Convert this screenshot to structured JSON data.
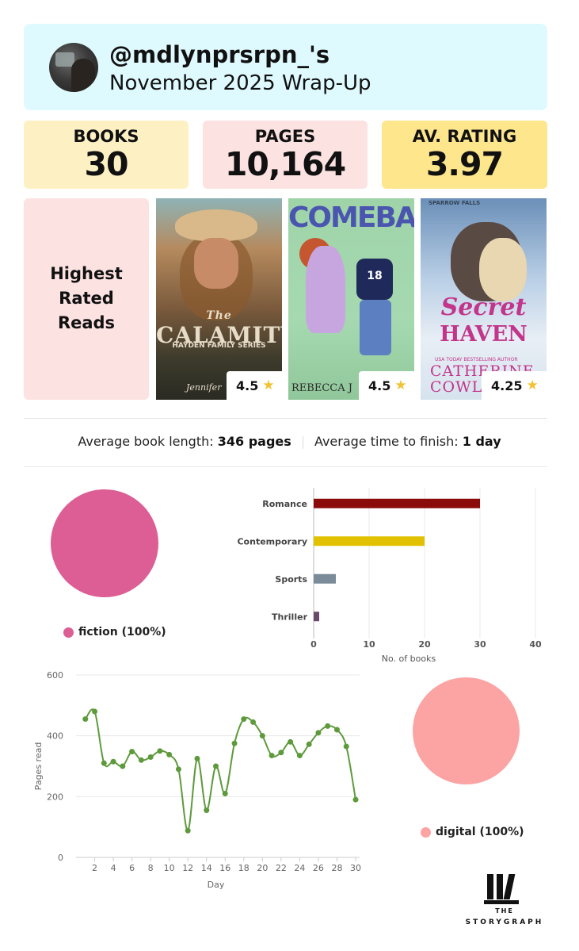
{
  "header": {
    "username": "@mdlynprsrpn_'s",
    "subtitle": "November 2025 Wrap-Up"
  },
  "stats": {
    "books_label": "BOOKS",
    "books_value": "30",
    "pages_label": "PAGES",
    "pages_value": "10,164",
    "rating_label": "AV. RATING",
    "rating_value": "3.97"
  },
  "highest_rated": {
    "heading_line1": "Highest",
    "heading_line2": "Rated",
    "heading_line3": "Reads",
    "books": [
      {
        "title_line1": "The",
        "title_line2": "CALAMITY",
        "series": "HAYDEN FAMILY SERIES",
        "author": "Jennifer",
        "rating": "4.5"
      },
      {
        "title": "COMEBACK",
        "jersey": "18",
        "author": "REBECCA J",
        "rating": "4.5"
      },
      {
        "top_note": "SPARROW FALLS",
        "title_line1": "Secret",
        "title_line2": "HAVEN",
        "usa_note": "USA TODAY BESTSELLING AUTHOR",
        "author": "CATHERINE COWL",
        "rating": "4.25"
      }
    ],
    "star_icon": "star-icon",
    "star_color": "#f2c230"
  },
  "averages": {
    "length_label": "Average book length:",
    "length_value": "346 pages",
    "time_label": "Average time to finish:",
    "time_value": "1 day"
  },
  "fiction_pie": {
    "legend": "fiction (100%)",
    "color": "#dd5e94"
  },
  "format_pie": {
    "legend": "digital (100%)",
    "color": "#fca3a3"
  },
  "chart_data": [
    {
      "type": "bar",
      "orientation": "horizontal",
      "categories": [
        "Romance",
        "Contemporary",
        "Sports",
        "Thriller"
      ],
      "values": [
        30,
        20,
        4,
        1
      ],
      "colors": [
        "#8b0b0b",
        "#e2c100",
        "#7a8c99",
        "#6a4a6a"
      ],
      "xlabel": "No. of books",
      "xlim": [
        0,
        40
      ],
      "xticks": [
        "0",
        "10",
        "20",
        "30",
        "40"
      ],
      "grid": true
    },
    {
      "type": "line",
      "x": [
        1,
        2,
        3,
        4,
        5,
        6,
        7,
        8,
        9,
        10,
        11,
        12,
        13,
        14,
        15,
        16,
        17,
        18,
        19,
        20,
        21,
        22,
        23,
        24,
        25,
        26,
        27,
        28,
        29,
        30
      ],
      "values": [
        455,
        480,
        310,
        315,
        300,
        348,
        320,
        330,
        350,
        338,
        290,
        88,
        325,
        155,
        300,
        210,
        375,
        455,
        445,
        400,
        335,
        345,
        380,
        335,
        372,
        410,
        432,
        420,
        365,
        190
      ],
      "color": "#5e9a3c",
      "xlabel": "Day",
      "ylabel": "Pages read",
      "xlim": [
        0,
        30
      ],
      "ylim": [
        0,
        600
      ],
      "xticks": [
        "2",
        "4",
        "6",
        "8",
        "10",
        "12",
        "14",
        "16",
        "18",
        "20",
        "22",
        "24",
        "26",
        "28",
        "30"
      ],
      "yticks": [
        "0",
        "200",
        "400",
        "600"
      ],
      "grid": true
    }
  ],
  "logo": {
    "line1": "THE",
    "line2": "STORYGRAPH"
  }
}
